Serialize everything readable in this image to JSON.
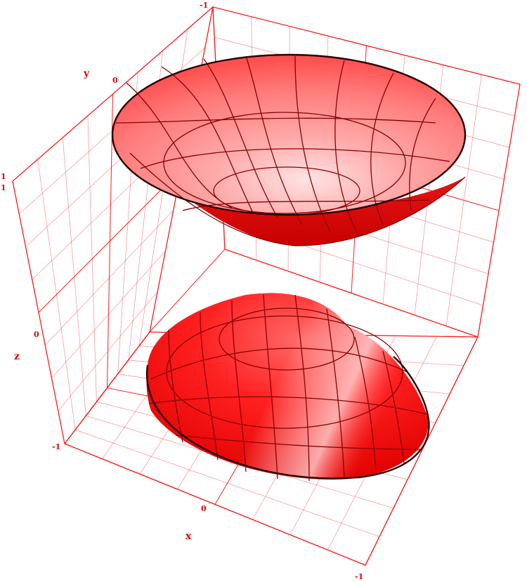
{
  "chart_data": {
    "type": "surface3d",
    "title": "",
    "surfaces": [
      {
        "name": "",
        "shape": "upper bowl (opens upward)",
        "color": "#ff0000"
      },
      {
        "name": "",
        "shape": "lower dome",
        "color": "#ff0000"
      }
    ],
    "axes": {
      "x": {
        "label": "x",
        "range": [
          -1,
          1
        ],
        "ticks": [
          "-1",
          "0"
        ]
      },
      "y": {
        "label": "y",
        "range": [
          -1,
          1
        ],
        "ticks": [
          "-1",
          "0",
          "1"
        ]
      },
      "z": {
        "label": "z",
        "range": [
          -1,
          1
        ],
        "ticks": [
          "-1",
          "0",
          "1"
        ]
      }
    },
    "grid": true,
    "frame_color": "#ff0000"
  }
}
